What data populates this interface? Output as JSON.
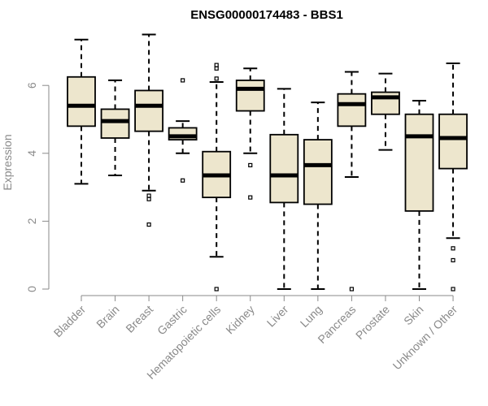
{
  "chart_data": {
    "type": "boxplot",
    "title": "ENSG00000174483 - BBS1",
    "xlabel": "",
    "ylabel": "Expression",
    "ylim": [
      0,
      7.5
    ],
    "yticks": [
      0,
      2,
      4,
      6
    ],
    "box_fill": "#ede6cd",
    "box_stroke": "#000000",
    "categories": [
      "Bladder",
      "Brain",
      "Breast",
      "Gastric",
      "Hematopoietic cells",
      "Kidney",
      "Liver",
      "Lung",
      "Pancreas",
      "Prostate",
      "Skin",
      "Unknown / Other"
    ],
    "series": [
      {
        "name": "Bladder",
        "whisker_low": 3.1,
        "q1": 4.8,
        "median": 5.4,
        "q3": 6.25,
        "whisker_high": 7.35,
        "outliers": []
      },
      {
        "name": "Brain",
        "whisker_low": 3.35,
        "q1": 4.45,
        "median": 4.95,
        "q3": 5.3,
        "whisker_high": 6.15,
        "outliers": []
      },
      {
        "name": "Breast",
        "whisker_low": 2.9,
        "q1": 4.65,
        "median": 5.4,
        "q3": 5.85,
        "whisker_high": 7.5,
        "outliers": [
          2.75,
          2.65,
          1.9
        ]
      },
      {
        "name": "Gastric",
        "whisker_low": 4.0,
        "q1": 4.4,
        "median": 4.5,
        "q3": 4.75,
        "whisker_high": 4.95,
        "outliers": [
          6.15,
          3.2
        ]
      },
      {
        "name": "Hematopoietic cells",
        "whisker_low": 0.95,
        "q1": 2.7,
        "median": 3.35,
        "q3": 4.05,
        "whisker_high": 6.1,
        "outliers": [
          6.6,
          6.5,
          6.2,
          0.0
        ]
      },
      {
        "name": "Kidney",
        "whisker_low": 4.0,
        "q1": 5.25,
        "median": 5.9,
        "q3": 6.15,
        "whisker_high": 6.5,
        "outliers": [
          3.65,
          2.7
        ]
      },
      {
        "name": "Liver",
        "whisker_low": 0.0,
        "q1": 2.55,
        "median": 3.35,
        "q3": 4.55,
        "whisker_high": 5.9,
        "outliers": []
      },
      {
        "name": "Lung",
        "whisker_low": 0.0,
        "q1": 2.5,
        "median": 3.65,
        "q3": 4.4,
        "whisker_high": 5.5,
        "outliers": []
      },
      {
        "name": "Pancreas",
        "whisker_low": 3.3,
        "q1": 4.8,
        "median": 5.45,
        "q3": 5.75,
        "whisker_high": 6.4,
        "outliers": [
          0.0
        ]
      },
      {
        "name": "Prostate",
        "whisker_low": 4.1,
        "q1": 5.15,
        "median": 5.65,
        "q3": 5.8,
        "whisker_high": 6.35,
        "outliers": []
      },
      {
        "name": "Skin",
        "whisker_low": 0.0,
        "q1": 2.3,
        "median": 4.5,
        "q3": 5.15,
        "whisker_high": 5.55,
        "outliers": []
      },
      {
        "name": "Unknown / Other",
        "whisker_low": 1.5,
        "q1": 3.55,
        "median": 4.45,
        "q3": 5.15,
        "whisker_high": 6.65,
        "outliers": [
          1.2,
          0.85,
          0.0
        ]
      }
    ]
  }
}
